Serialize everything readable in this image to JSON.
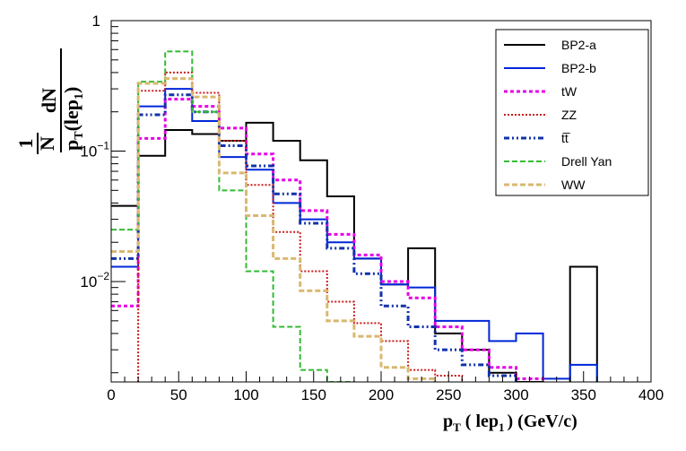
{
  "chart_data": {
    "type": "step-histogram",
    "xlabel": "p_T ( lep_1 ) (GeV/c)",
    "xlabel_main": "p",
    "xlabel_sub": "T",
    "xlabel_mid": " ( lep",
    "xlabel_sub2": "1",
    "xlabel_end": ") (GeV/c)",
    "ylabel": "1/N dN/p_T(lep_1)",
    "ylabel_one": "1",
    "ylabel_N": "N",
    "ylabel_dN": "dN",
    "ylabel_den_main": "p",
    "ylabel_den_sub": "T",
    "ylabel_den_mid": "(lep",
    "ylabel_den_sub2": "1",
    "ylabel_den_end": ")",
    "xlim": [
      0,
      400
    ],
    "ylim": [
      0.0017,
      1
    ],
    "yscale": "log",
    "legend_position": "top-right",
    "x_ticks": [
      {
        "value": 0,
        "label": "0"
      },
      {
        "value": 50,
        "label": "50"
      },
      {
        "value": 100,
        "label": "100"
      },
      {
        "value": 150,
        "label": "150"
      },
      {
        "value": 200,
        "label": "200"
      },
      {
        "value": 250,
        "label": "250"
      },
      {
        "value": 300,
        "label": "300"
      },
      {
        "value": 350,
        "label": "350"
      },
      {
        "value": 400,
        "label": "400"
      }
    ],
    "y_ticks": [
      {
        "value": 1,
        "base": "1",
        "exp": ""
      },
      {
        "value": 0.1,
        "base": "10",
        "exp": "−1"
      },
      {
        "value": 0.01,
        "base": "10",
        "exp": "−2"
      }
    ],
    "bin_edges": [
      0,
      20,
      40,
      60,
      80,
      100,
      120,
      140,
      160,
      180,
      200,
      220,
      240,
      260,
      280,
      300,
      320,
      340,
      360,
      380,
      400
    ],
    "series": [
      {
        "name": "BP2-a",
        "color": "#000000",
        "dash": "",
        "width": 2,
        "values": [
          0.038,
          0.092,
          0.145,
          0.135,
          0.12,
          0.165,
          0.12,
          0.085,
          0.045,
          0.015,
          0.0095,
          0.018,
          0.004,
          0.003,
          0.002,
          0.0017,
          0,
          0.013,
          0,
          0
        ]
      },
      {
        "name": "BP2-b",
        "color": "#0026d9",
        "dash": "",
        "width": 2,
        "values": [
          0.013,
          0.22,
          0.3,
          0.17,
          0.09,
          0.072,
          0.04,
          0.03,
          0.02,
          0.015,
          0.0095,
          0.009,
          0.005,
          0.005,
          0.0035,
          0.004,
          0.0018,
          0.0023,
          0,
          0
        ]
      },
      {
        "name": "tW",
        "color": "#e600e6",
        "dash": "4 3",
        "width": 3,
        "values": [
          0.0065,
          0.125,
          0.25,
          0.22,
          0.15,
          0.095,
          0.06,
          0.035,
          0.023,
          0.016,
          0.01,
          0.0075,
          0.0045,
          0.003,
          0.0022,
          0.0018,
          0,
          0,
          0,
          0
        ]
      },
      {
        "name": "ZZ",
        "color": "#cc1a1a",
        "dash": "2 2",
        "width": 2,
        "values": [
          0,
          0.29,
          0.4,
          0.28,
          0.12,
          0.055,
          0.024,
          0.012,
          0.007,
          0.0048,
          0.0035,
          0.0021,
          0.0019,
          0,
          0,
          0,
          0,
          0,
          0,
          0
        ]
      },
      {
        "name": "tt̅",
        "color": "#1133aa",
        "dash": "6 3 2 3 2 3",
        "width": 3,
        "values": [
          0.015,
          0.19,
          0.27,
          0.2,
          0.11,
          0.077,
          0.047,
          0.028,
          0.018,
          0.0115,
          0.0065,
          0.0045,
          0.003,
          0.0023,
          0.0019,
          0,
          0,
          0,
          0,
          0
        ]
      },
      {
        "name": "Drell Yan",
        "color": "#33bb33",
        "dash": "6 3",
        "width": 2,
        "values": [
          0.025,
          0.34,
          0.58,
          0.2,
          0.05,
          0.012,
          0.0045,
          0.0021,
          0.0017,
          0,
          0,
          0,
          0,
          0,
          0,
          0,
          0,
          0,
          0,
          0
        ]
      },
      {
        "name": "WW",
        "color": "#d9b870",
        "dash": "6 3",
        "width": 3,
        "values": [
          0.017,
          0.33,
          0.36,
          0.26,
          0.068,
          0.032,
          0.015,
          0.0085,
          0.005,
          0.0038,
          0.0022,
          0.0018,
          0,
          0,
          0,
          0,
          0,
          0,
          0,
          0
        ]
      }
    ]
  }
}
